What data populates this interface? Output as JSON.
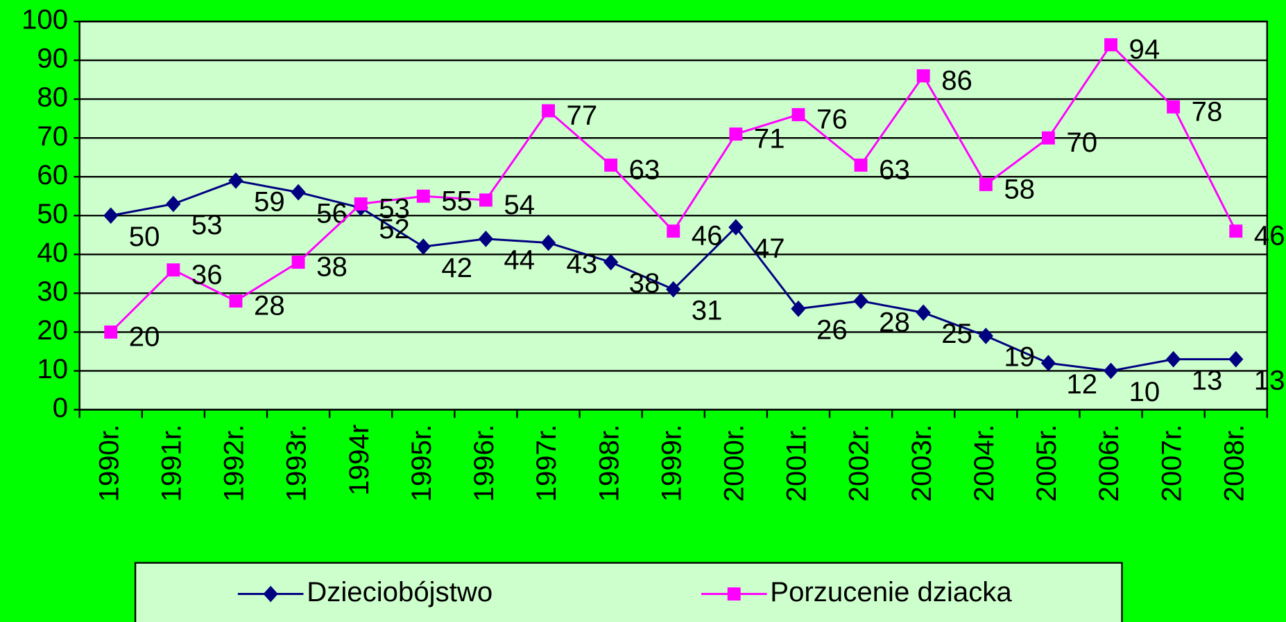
{
  "chart_data": {
    "type": "line",
    "categories": [
      "1990r.",
      "1991r.",
      "1992r.",
      "1993r.",
      "1994r",
      "1995r.",
      "1996r.",
      "1997r.",
      "1998r.",
      "1999r.",
      "2000r.",
      "2001r.",
      "2002r.",
      "2003r.",
      "2004r.",
      "2005r.",
      "2006r.",
      "2007r.",
      "2008r."
    ],
    "series": [
      {
        "name": "Dzieciobójstwo",
        "color": "#000080",
        "marker": "diamond",
        "values": [
          50,
          53,
          59,
          56,
          52,
          42,
          44,
          43,
          38,
          31,
          47,
          26,
          28,
          25,
          19,
          12,
          10,
          13,
          13
        ]
      },
      {
        "name": "Porzucenie dziacka",
        "color": "#ff00ff",
        "marker": "square",
        "values": [
          20,
          36,
          28,
          38,
          53,
          55,
          54,
          77,
          63,
          46,
          71,
          76,
          63,
          86,
          58,
          70,
          94,
          78,
          46
        ]
      }
    ],
    "ylim": [
      0,
      100
    ],
    "yticks": [
      0,
      10,
      20,
      30,
      40,
      50,
      60,
      70,
      80,
      90,
      100
    ],
    "grid": true,
    "legend": "bottom"
  }
}
